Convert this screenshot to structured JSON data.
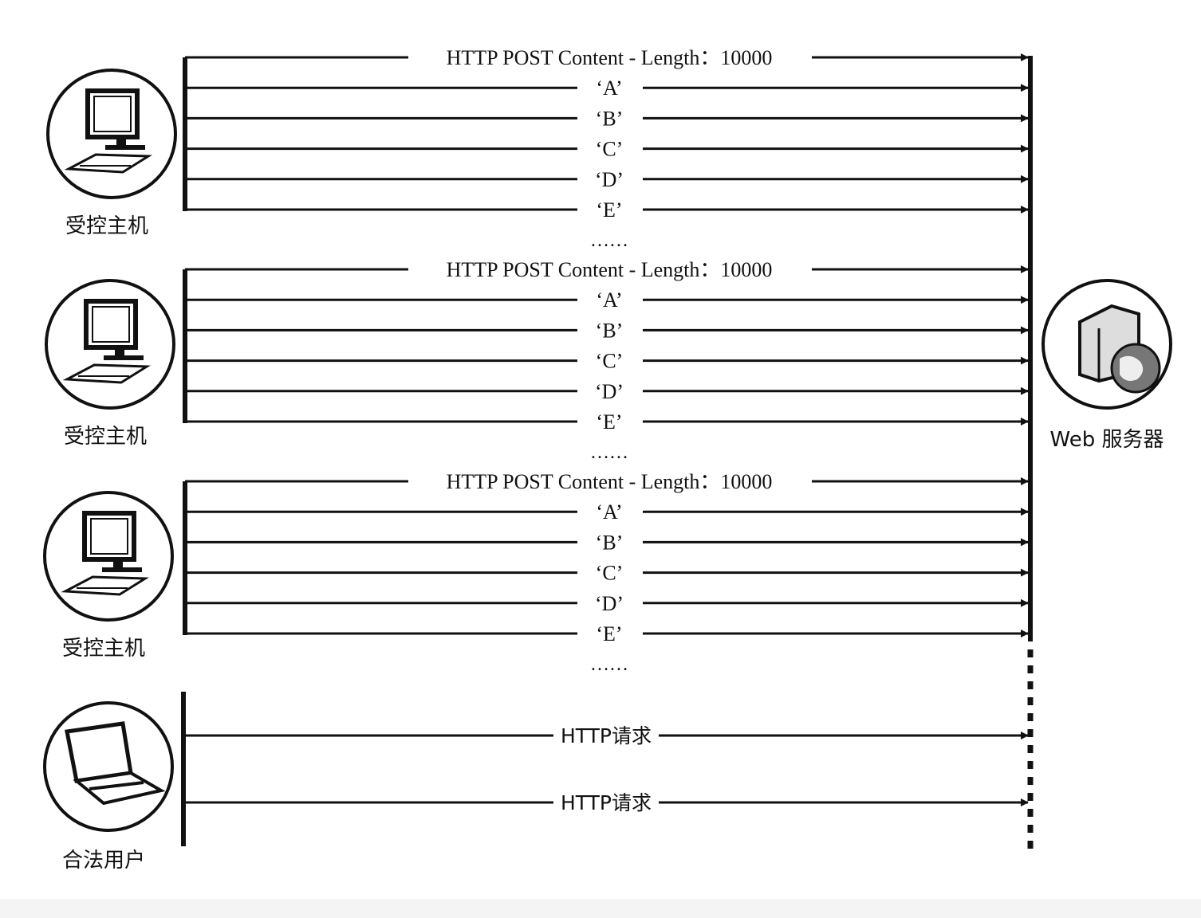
{
  "groups": [
    {
      "host_label": "受控主机",
      "host_icon": "desktop-computer-icon",
      "header_message": "HTTP POST Content - Length：10000",
      "messages": [
        "‘A’",
        "‘B’",
        "‘C’",
        "‘D’",
        "‘E’"
      ],
      "continuation": "……"
    },
    {
      "host_label": "受控主机",
      "host_icon": "desktop-computer-icon",
      "header_message": "HTTP POST Content - Length：10000",
      "messages": [
        "‘A’",
        "‘B’",
        "‘C’",
        "‘D’",
        "‘E’"
      ],
      "continuation": "……"
    },
    {
      "host_label": "受控主机",
      "host_icon": "desktop-computer-icon",
      "header_message": "HTTP POST Content - Length：10000",
      "messages": [
        "‘A’",
        "‘B’",
        "‘C’",
        "‘D’",
        "‘E’"
      ],
      "continuation": "……"
    }
  ],
  "legit_user": {
    "label": "合法用户",
    "icon": "laptop-computer-icon",
    "requests": [
      "HTTP请求",
      "HTTP请求"
    ]
  },
  "server": {
    "label": "Web 服务器",
    "icon": "web-server-globe-icon"
  },
  "colors": {
    "line": "#111111",
    "background": "#ffffff"
  }
}
